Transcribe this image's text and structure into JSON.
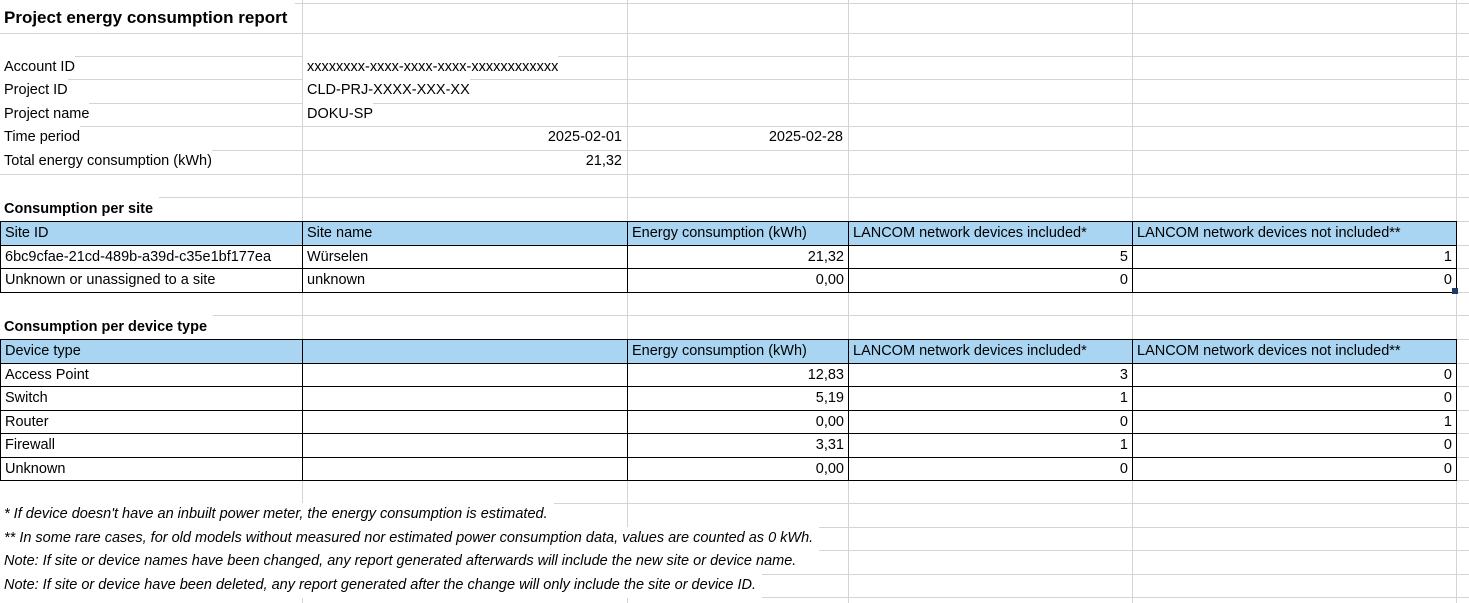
{
  "report": {
    "title": "Project energy consumption report",
    "fields": {
      "account_id": {
        "label": "Account ID",
        "value": "xxxxxxxx-xxxx-xxxx-xxxx-xxxxxxxxxxxx"
      },
      "project_id": {
        "label": "Project ID",
        "value": "CLD-PRJ-XXXX-XXX-XX"
      },
      "project_name": {
        "label": "Project name",
        "value": "DOKU-SP"
      },
      "time_period": {
        "label": "Time period",
        "start": "2025-02-01",
        "end": "2025-02-28"
      },
      "total_consumption": {
        "label": "Total energy consumption (kWh)",
        "value": "21,32"
      }
    }
  },
  "site_section": {
    "heading": "Consumption per site",
    "columns": [
      "Site ID",
      "Site name",
      "Energy consumption (kWh)",
      "LANCOM network devices included*",
      "LANCOM network devices not included**"
    ],
    "rows": [
      [
        "6bc9cfae-21cd-489b-a39d-c35e1bf177ea",
        "Würselen",
        "21,32",
        "5",
        "1"
      ],
      [
        "Unknown or unassigned to a site",
        "unknown",
        "0,00",
        "0",
        "0"
      ]
    ]
  },
  "device_section": {
    "heading": "Consumption per device type",
    "columns": [
      "Device type",
      "",
      "Energy consumption (kWh)",
      "LANCOM network devices included*",
      "LANCOM network devices not included**"
    ],
    "rows": [
      [
        "Access Point",
        "",
        "12,83",
        "3",
        "0"
      ],
      [
        "Switch",
        "",
        "5,19",
        "1",
        "0"
      ],
      [
        "Router",
        "",
        "0,00",
        "0",
        "1"
      ],
      [
        "Firewall",
        "",
        "3,31",
        "1",
        "0"
      ],
      [
        "Unknown",
        "",
        "0,00",
        "0",
        "0"
      ]
    ]
  },
  "notes": [
    "* If device doesn't have an inbuilt power meter, the energy consumption is estimated.",
    "** In some rare cases, for old models without measured nor estimated power consumption data, values are counted as 0 kWh.",
    "Note: If site or device names have been changed, any report generated afterwards will include the new site or device name.",
    "Note: If site or device have been deleted, any report generated after the change will only include the site or device ID."
  ],
  "colors": {
    "header_fill": "#a9d5f2",
    "grid_line": "#d4d4d4",
    "table_border": "#000000",
    "fill_handle": "#1f3864"
  }
}
